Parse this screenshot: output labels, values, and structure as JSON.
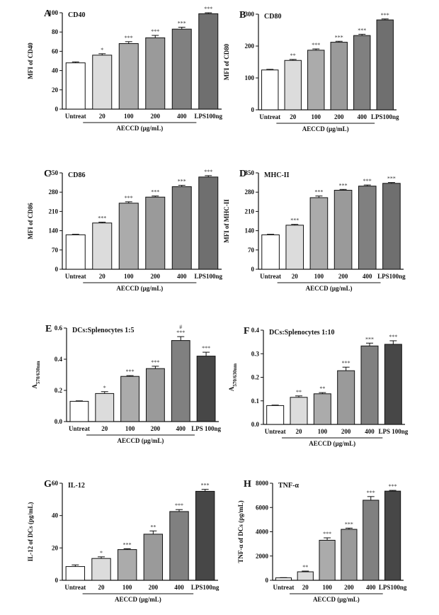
{
  "colors": {
    "untreat": "#ffffff",
    "c20": "#dcdcdc",
    "c100": "#ababab",
    "c200": "#9a9a9a",
    "c400": "#808080",
    "lps": "#6f6f6f",
    "lps_dark": "#474747",
    "axis": "#111111"
  },
  "chart_data": [
    {
      "type": "bar",
      "letter": "A",
      "title": "CD40",
      "ylabel": "MFI of CD40",
      "categories": [
        "Untreat",
        "20",
        "100",
        "200",
        "400",
        "LPS100ng"
      ],
      "group_label": "AECCD (μg/mL)",
      "values": [
        48,
        56,
        68,
        74,
        83,
        99
      ],
      "errors": [
        1,
        1.5,
        2,
        2.5,
        2,
        1
      ],
      "sig": [
        "",
        "*",
        "***",
        "***",
        "***",
        "***"
      ],
      "sig2": [
        "",
        "",
        "",
        "",
        "",
        ""
      ],
      "ylim": [
        0,
        100
      ],
      "yticks": [
        0,
        20,
        40,
        60,
        80,
        100
      ],
      "colors": [
        "untreat",
        "c20",
        "c100",
        "c200",
        "c400",
        "lps"
      ]
    },
    {
      "type": "bar",
      "letter": "B",
      "title": "CD80",
      "ylabel": "MFI of CD80",
      "categories": [
        "Untreat",
        "20",
        "100",
        "200",
        "400",
        "LPS100ng"
      ],
      "group_label": "AECCD (μg/mL)",
      "values": [
        125,
        155,
        187,
        212,
        233,
        282
      ],
      "errors": [
        2,
        3,
        4,
        3,
        4,
        3
      ],
      "sig": [
        "",
        "**",
        "***",
        "***",
        "***",
        "***"
      ],
      "sig2": [
        "",
        "",
        "",
        "",
        "",
        ""
      ],
      "ylim": [
        0,
        300
      ],
      "yticks": [
        0,
        100,
        200,
        300
      ],
      "colors": [
        "untreat",
        "c20",
        "c100",
        "c200",
        "c400",
        "lps"
      ]
    },
    {
      "type": "bar",
      "letter": "C",
      "title": "CD86",
      "ylabel": "MFI of CD86",
      "categories": [
        "Untreat",
        "20",
        "100",
        "200",
        "400",
        "LPS100ng"
      ],
      "group_label": "AECCD (μg/mL)",
      "values": [
        125,
        168,
        240,
        262,
        300,
        335
      ],
      "errors": [
        2,
        3,
        5,
        4,
        5,
        5
      ],
      "sig": [
        "",
        "***",
        "***",
        "***",
        "***",
        "***"
      ],
      "sig2": [
        "",
        "",
        "",
        "",
        "",
        ""
      ],
      "ylim": [
        0,
        350
      ],
      "yticks": [
        0,
        70,
        140,
        210,
        280,
        350
      ],
      "colors": [
        "untreat",
        "c20",
        "c100",
        "c200",
        "c400",
        "lps"
      ]
    },
    {
      "type": "bar",
      "letter": "D",
      "title": "MHC-II",
      "ylabel": "MFI of MHC-II",
      "categories": [
        "Untreat",
        "20",
        "100",
        "200",
        "400",
        "LPS100ng"
      ],
      "group_label": "AECCD (μg/mL)",
      "values": [
        125,
        160,
        260,
        287,
        302,
        312
      ],
      "errors": [
        2,
        3,
        6,
        3,
        4,
        3
      ],
      "sig": [
        "",
        "***",
        "***",
        "***",
        "***",
        "***"
      ],
      "sig2": [
        "",
        "",
        "",
        "",
        "",
        ""
      ],
      "ylim": [
        0,
        350
      ],
      "yticks": [
        0,
        70,
        140,
        210,
        280,
        350
      ],
      "colors": [
        "untreat",
        "c20",
        "c100",
        "c200",
        "c400",
        "lps"
      ]
    },
    {
      "type": "bar",
      "letter": "E",
      "title": "DCs:Splenocytes 1:5",
      "ylabel": "A570/630nm",
      "ylabel_main": "A",
      "ylabel_sub": "570/630nm",
      "categories": [
        "Untreat",
        "20",
        "100",
        "200",
        "400",
        "LPS 100ng"
      ],
      "group_label": "AECCD (μg/mL)",
      "values": [
        0.13,
        0.18,
        0.29,
        0.34,
        0.52,
        0.42
      ],
      "errors": [
        0.003,
        0.012,
        0.005,
        0.015,
        0.025,
        0.025
      ],
      "sig": [
        "",
        "*",
        "***",
        "***",
        "***",
        "***"
      ],
      "sig2": [
        "",
        "",
        "",
        "",
        "#",
        ""
      ],
      "ylim": [
        0,
        0.6
      ],
      "yticks": [
        0.0,
        0.2,
        0.4,
        0.6
      ],
      "colors": [
        "untreat",
        "c20",
        "c100",
        "c200",
        "c400",
        "lps_dark"
      ]
    },
    {
      "type": "bar",
      "letter": "F",
      "title": "DCs:Splenocytes 1:10",
      "ylabel": "A570/630nm",
      "ylabel_main": "A",
      "ylabel_sub": "570/630nm",
      "categories": [
        "Untreat",
        "20",
        "100",
        "200",
        "400",
        "LPS 100ng"
      ],
      "group_label": "AECCD (μg/mL)",
      "values": [
        0.08,
        0.115,
        0.13,
        0.228,
        0.333,
        0.34
      ],
      "errors": [
        0.002,
        0.006,
        0.005,
        0.015,
        0.012,
        0.015
      ],
      "sig": [
        "",
        "**",
        "**",
        "***",
        "***",
        "***"
      ],
      "sig2": [
        "",
        "",
        "",
        "",
        "",
        ""
      ],
      "ylim": [
        0,
        0.4
      ],
      "yticks": [
        0.0,
        0.1,
        0.2,
        0.3,
        0.4
      ],
      "colors": [
        "untreat",
        "c20",
        "c100",
        "c200",
        "c400",
        "lps_dark"
      ]
    },
    {
      "type": "bar",
      "letter": "G",
      "title": "IL-12",
      "ylabel": "IL-12 of DCs (pg/mL)",
      "categories": [
        "Untreat",
        "20",
        "100",
        "200",
        "400",
        "LPS100ng"
      ],
      "group_label": "AECCD (μg/mL)",
      "values": [
        8.5,
        13.5,
        19,
        28.5,
        42.5,
        55
      ],
      "errors": [
        1,
        1,
        0.5,
        2,
        1.2,
        1.2
      ],
      "sig": [
        "",
        "*",
        "***",
        "**",
        "***",
        "***"
      ],
      "sig2": [
        "",
        "",
        "",
        "",
        "",
        ""
      ],
      "ylim": [
        0,
        60
      ],
      "yticks": [
        0,
        20,
        40,
        60
      ],
      "colors": [
        "untreat",
        "c20",
        "c100",
        "c200",
        "c400",
        "lps_dark"
      ]
    },
    {
      "type": "bar",
      "letter": "H",
      "title": "TNF-α",
      "ylabel": "TNF-α of DCs (pg/mL)",
      "categories": [
        "Untreat",
        "20",
        "100",
        "200",
        "400",
        "LPS100ng"
      ],
      "group_label": "AECCD (μg/mL)",
      "values": [
        200,
        700,
        3300,
        4200,
        6600,
        7350
      ],
      "errors": [
        20,
        60,
        200,
        100,
        300,
        60
      ],
      "sig": [
        "",
        "**",
        "***",
        "***",
        "***",
        "***"
      ],
      "sig2": [
        "",
        "",
        "",
        "",
        "",
        ""
      ],
      "ylim": [
        0,
        8000
      ],
      "yticks": [
        0,
        2000,
        4000,
        6000,
        8000
      ],
      "colors": [
        "untreat",
        "c20",
        "c100",
        "c200",
        "c400",
        "lps_dark"
      ]
    }
  ]
}
